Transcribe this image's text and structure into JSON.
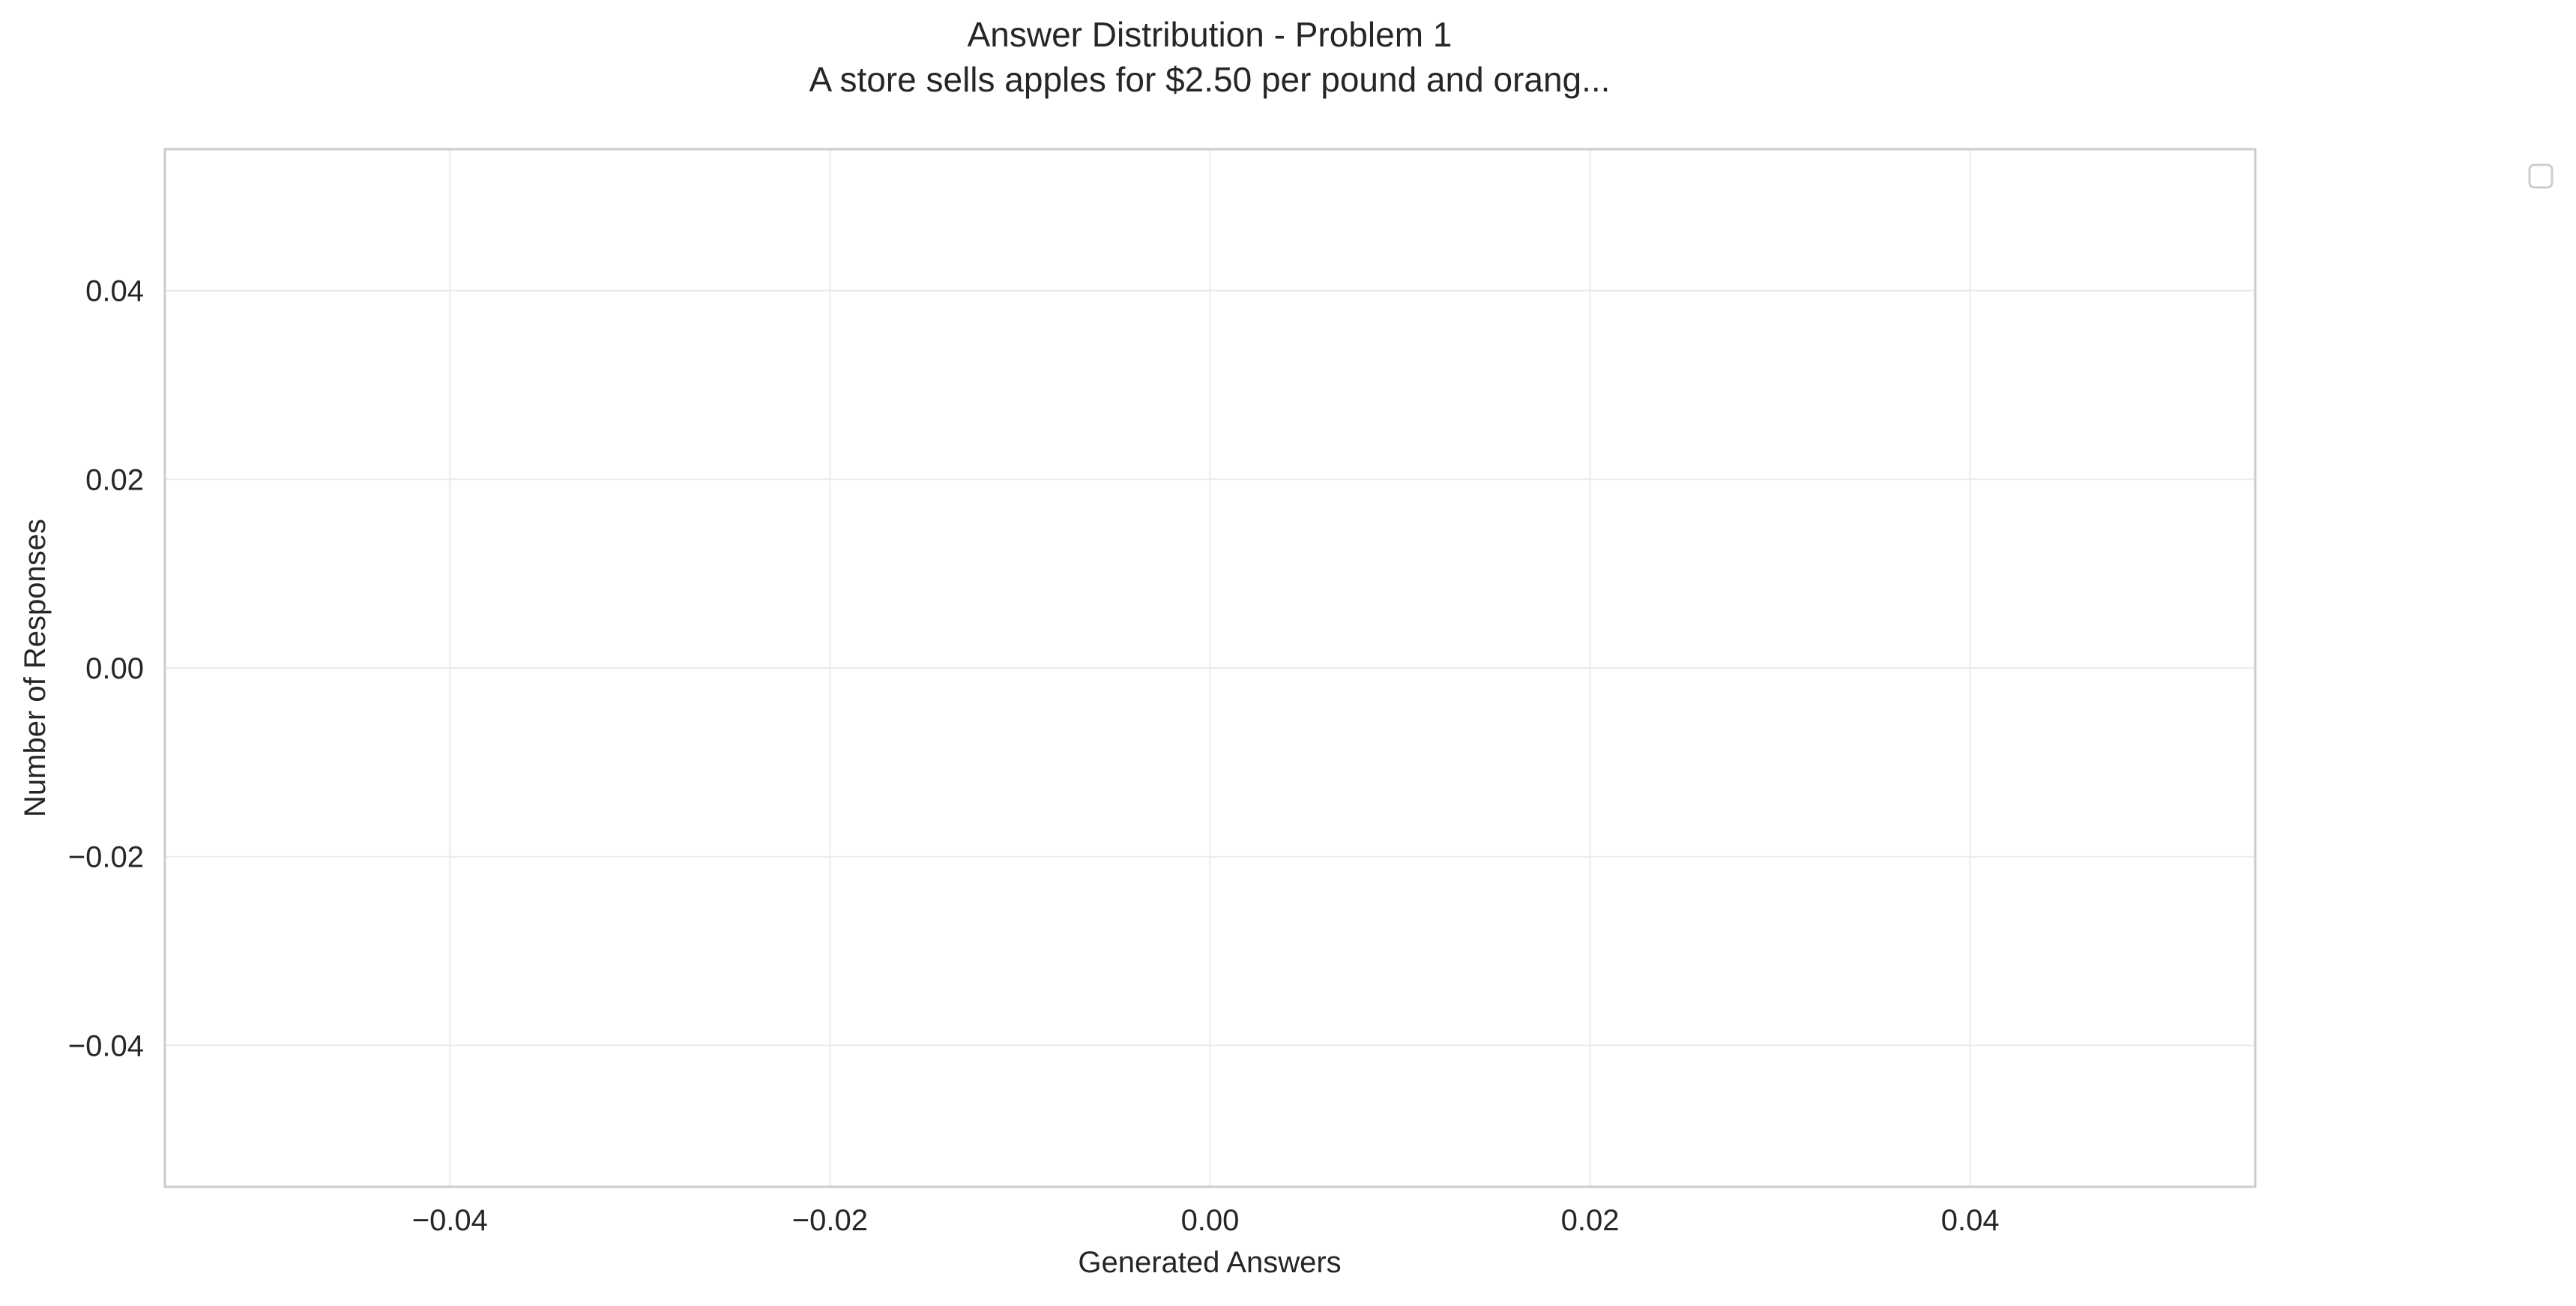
{
  "chart_data": {
    "type": "bar",
    "title": "Answer Distribution - Problem 1",
    "subtitle": "A store sells apples for $2.50 per pound and orang...",
    "xlabel": "Generated Answers",
    "ylabel": "Number of Responses",
    "categories": [],
    "values": [],
    "series": [],
    "xlim": [
      -0.055,
      0.055
    ],
    "ylim": [
      -0.055,
      0.055
    ],
    "xticks": [
      -0.04,
      -0.02,
      0.0,
      0.02,
      0.04
    ],
    "yticks": [
      -0.04,
      -0.02,
      0.0,
      0.02,
      0.04
    ],
    "xtick_labels": [
      "−0.04",
      "−0.02",
      "0.00",
      "0.02",
      "0.04"
    ],
    "ytick_labels": [
      "−0.04",
      "−0.02",
      "0.00",
      "0.02",
      "0.04"
    ],
    "grid": true,
    "legend": {
      "placement": "outside-top-right",
      "entries": []
    },
    "colors": {
      "background": "#ffffff",
      "grid": "#ebebeb",
      "spine": "#cccccc",
      "text": "#262626",
      "legend_border": "#cccccc"
    }
  }
}
